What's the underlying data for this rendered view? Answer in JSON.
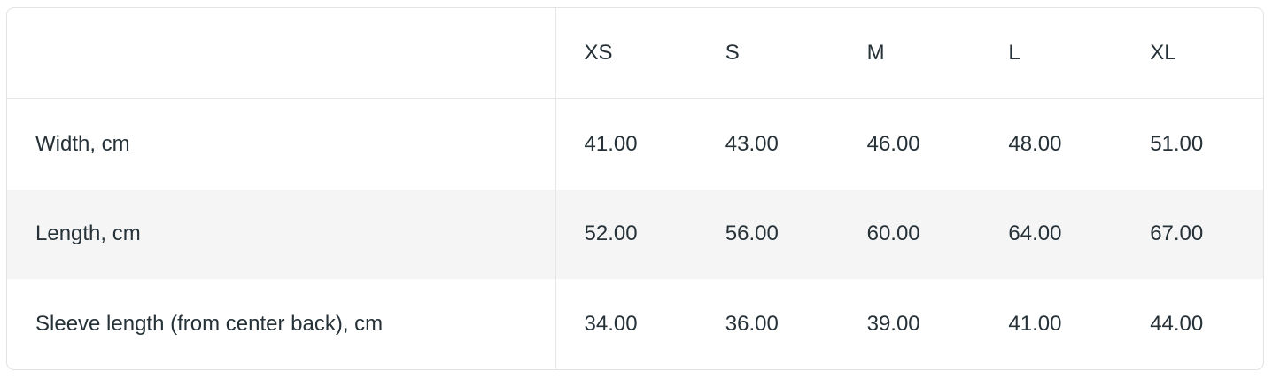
{
  "size_chart": {
    "columns": [
      "XS",
      "S",
      "M",
      "L",
      "XL"
    ],
    "rows": [
      {
        "label": "Width, cm",
        "values": [
          "41.00",
          "43.00",
          "46.00",
          "48.00",
          "51.00"
        ]
      },
      {
        "label": "Length, cm",
        "values": [
          "52.00",
          "56.00",
          "60.00",
          "64.00",
          "67.00"
        ]
      },
      {
        "label": "Sleeve length (from center back), cm",
        "values": [
          "34.00",
          "36.00",
          "39.00",
          "41.00",
          "44.00"
        ]
      }
    ],
    "colors": {
      "text": "#263238",
      "border": "#e3e3e3",
      "inner_rule": "#e6e6e6",
      "stripe_row_background": "#f5f5f5",
      "background": "#ffffff"
    }
  },
  "chart_data": {
    "type": "table",
    "columns": [
      "",
      "XS",
      "S",
      "M",
      "L",
      "XL"
    ],
    "rows": [
      [
        "Width, cm",
        41.0,
        43.0,
        46.0,
        48.0,
        51.0
      ],
      [
        "Length, cm",
        52.0,
        56.0,
        60.0,
        64.0,
        67.0
      ],
      [
        "Sleeve length (from center back), cm",
        34.0,
        36.0,
        39.0,
        41.0,
        44.0
      ]
    ]
  }
}
